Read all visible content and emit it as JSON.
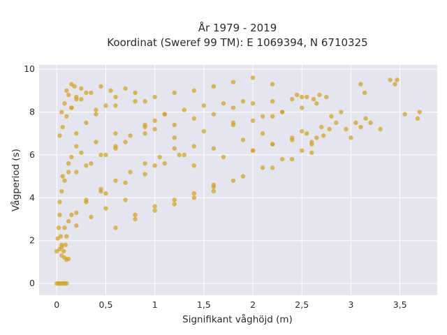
{
  "chart_data": {
    "type": "scatter",
    "title_lines": [
      "År 1979 - 2019",
      "Koordinat (Sweref 99 TM): E 1069394, N 6710325"
    ],
    "xlabel": "Signifikant våghöjd (m)",
    "ylabel": "Vågperiod (s)",
    "xlim": [
      -0.18,
      3.88
    ],
    "ylim": [
      -0.55,
      10.2
    ],
    "x_ticks": [
      0,
      0.5,
      1,
      1.5,
      2,
      2.5,
      3,
      3.5
    ],
    "x_tick_labels": [
      "0",
      "0,5",
      "1",
      "1,5",
      "2",
      "2,5",
      "3",
      "3,5"
    ],
    "y_ticks": [
      0,
      2,
      4,
      6,
      8,
      10
    ],
    "y_tick_labels": [
      "0",
      "2",
      "4",
      "6",
      "8",
      "10"
    ],
    "grid": true,
    "legend": "none",
    "colors": {
      "marker": "#D4A420",
      "plot_bg": "#E5E5EF",
      "grid": "#FFFFFF"
    },
    "points_x": [
      0.0,
      0.02,
      0.04,
      0.06,
      0.08,
      0.1,
      0.0,
      0.03,
      0.05,
      0.07,
      0.09,
      0.01,
      0.02,
      0.03,
      0.05,
      0.08,
      0.1,
      0.12,
      0.03,
      0.05,
      0.08,
      0.12,
      0.15,
      0.2,
      0.03,
      0.06,
      0.1,
      0.15,
      0.2,
      0.3,
      0.04,
      0.08,
      0.12,
      0.2,
      0.3,
      0.45,
      0.05,
      0.1,
      0.2,
      0.35,
      0.5,
      0.7,
      0.06,
      0.12,
      0.25,
      0.4,
      0.6,
      0.9,
      0.05,
      0.08,
      0.12,
      0.18,
      0.1,
      0.15,
      0.2,
      0.25,
      0.15,
      0.25,
      0.35,
      0.45,
      0.55,
      0.2,
      0.3,
      0.4,
      0.5,
      0.6,
      0.7,
      0.8,
      0.9,
      0.3,
      0.45,
      0.6,
      0.75,
      0.9,
      1.0,
      1.1,
      0.5,
      0.7,
      0.9,
      1.1,
      1.25,
      1.4,
      0.6,
      0.8,
      1.0,
      1.2,
      1.4,
      1.6,
      0.8,
      1.0,
      1.2,
      1.4,
      1.6,
      1.8,
      1.0,
      1.3,
      1.6,
      1.9,
      2.1,
      1.2,
      1.5,
      1.8,
      2.0,
      2.2,
      2.3,
      1.4,
      1.7,
      2.0,
      2.2,
      2.4,
      2.5,
      1.6,
      1.9,
      2.2,
      2.4,
      2.6,
      1.8,
      2.1,
      2.3,
      2.5,
      2.65,
      2.0,
      2.2,
      2.4,
      2.55,
      2.7,
      2.1,
      2.3,
      2.5,
      2.6,
      2.72,
      2.78,
      1.8,
      2.0,
      2.2,
      2.4,
      2.5,
      1.1,
      1.3,
      1.5,
      1.7,
      1.9,
      0.2,
      0.35,
      0.5,
      0.6,
      0.7,
      0.9,
      1.0,
      1.2,
      1.4,
      1.6,
      0.15,
      0.3,
      0.45,
      0.6,
      0.75,
      0.9,
      1.05,
      1.2,
      0.4,
      0.6,
      0.8,
      1.0,
      1.2,
      1.4,
      1.6,
      1.8,
      2.0,
      2.2,
      2.45,
      2.55,
      2.62,
      2.68,
      2.75,
      2.8,
      2.85,
      2.9,
      2.95,
      3.0,
      3.05,
      3.1,
      3.15,
      3.2,
      3.3,
      3.45,
      3.47,
      3.55,
      3.68,
      3.7,
      3.4,
      3.1,
      3.14,
      2.6,
      2.65
    ],
    "points_y": [
      0.0,
      0.0,
      0.0,
      0.0,
      0.0,
      0.0,
      1.5,
      1.6,
      1.7,
      1.5,
      1.8,
      2.1,
      2.6,
      3.2,
      1.3,
      1.2,
      1.1,
      1.15,
      3.8,
      4.3,
      4.8,
      5.2,
      5.9,
      6.4,
      6.9,
      7.3,
      7.8,
      8.2,
      8.6,
      8.9,
      2.2,
      2.6,
      2.9,
      3.3,
      3.9,
      4.4,
      1.8,
      2.2,
      2.7,
      3.1,
      3.5,
      3.9,
      5.0,
      5.6,
      6.1,
      6.6,
      7.0,
      7.4,
      8.0,
      8.4,
      8.8,
      9.2,
      9.0,
      9.3,
      8.7,
      9.1,
      8.2,
      8.6,
      8.9,
      9.2,
      9.0,
      7.0,
      7.5,
      7.9,
      8.3,
      8.7,
      9.1,
      8.9,
      8.5,
      5.5,
      6.0,
      6.4,
      6.9,
      7.3,
      7.6,
      7.9,
      4.2,
      4.7,
      5.1,
      5.6,
      6.0,
      6.4,
      2.6,
      3.0,
      3.4,
      3.7,
      4.0,
      4.3,
      3.2,
      3.6,
      3.9,
      4.2,
      4.5,
      4.8,
      5.5,
      6.0,
      6.3,
      6.7,
      7.0,
      6.8,
      7.1,
      7.4,
      7.6,
      7.8,
      8.0,
      5.5,
      5.9,
      6.2,
      6.5,
      6.8,
      7.1,
      4.6,
      5.0,
      5.4,
      5.8,
      6.1,
      7.5,
      7.8,
      8.0,
      8.2,
      8.4,
      6.2,
      6.5,
      6.7,
      7.0,
      7.3,
      5.4,
      5.8,
      6.2,
      6.6,
      6.9,
      7.2,
      8.2,
      8.4,
      8.5,
      8.6,
      8.7,
      7.9,
      8.1,
      8.3,
      8.4,
      8.5,
      5.2,
      5.6,
      6.0,
      6.3,
      6.6,
      7.0,
      7.2,
      7.4,
      7.7,
      7.9,
      3.2,
      3.8,
      4.3,
      4.8,
      5.2,
      5.6,
      5.9,
      6.3,
      8.1,
      8.3,
      8.5,
      8.7,
      8.9,
      9.0,
      9.2,
      9.4,
      9.6,
      9.3,
      8.8,
      8.7,
      8.6,
      8.8,
      8.7,
      7.8,
      7.5,
      8.0,
      7.2,
      6.8,
      7.5,
      7.3,
      7.7,
      7.5,
      7.2,
      9.3,
      9.5,
      7.9,
      7.7,
      8.0,
      9.5,
      9.3,
      8.9,
      6.5,
      6.8
    ]
  }
}
